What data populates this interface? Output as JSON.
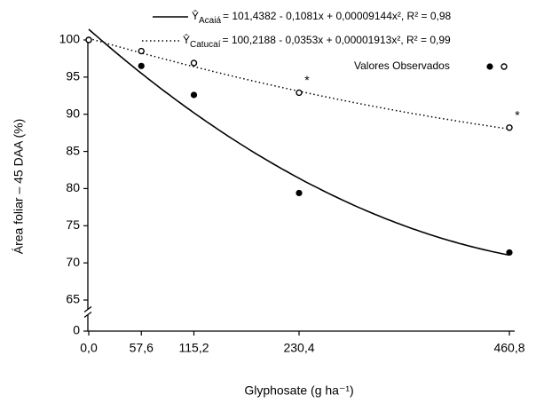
{
  "chart_data": {
    "type": "scatter",
    "xlabel": "Glyphosate (g ha⁻¹)",
    "ylabel": "Área foliar – 45 DAA (%)",
    "x": [
      0.0,
      57.6,
      115.2,
      230.4,
      460.8
    ],
    "xlim": [
      0.0,
      460.8
    ],
    "xticks": [
      {
        "value": 0.0,
        "label": "0,0"
      },
      {
        "value": 57.6,
        "label": "57,6"
      },
      {
        "value": 115.2,
        "label": "115,2"
      },
      {
        "value": 230.4,
        "label": "230,4"
      },
      {
        "value": 460.8,
        "label": "460,8"
      }
    ],
    "ylim": [
      0,
      100
    ],
    "y_break": [
      0,
      65
    ],
    "yticks": [
      0,
      65,
      70,
      75,
      80,
      85,
      90,
      95,
      100
    ],
    "fit_symbol": "Ŷ",
    "legend_note": "Valores Observados",
    "series": [
      {
        "name": "Acaiá",
        "color": "#000000",
        "marker": "filled",
        "line": "solid",
        "values": [
          100,
          96.5,
          92.6,
          79.4,
          71.4
        ],
        "fit_coefficients": [
          101.4382,
          -0.1081,
          9.144e-05
        ],
        "equation": "= 101,4382 - 0,1081x + 0,00009144x², R² = 0,98"
      },
      {
        "name": "Catucaí",
        "color": "#000000",
        "marker": "open",
        "line": "dotted",
        "values": [
          100,
          98.5,
          96.9,
          92.9,
          88.2
        ],
        "fit_coefficients": [
          100.2188,
          -0.0353,
          1.913e-05
        ],
        "equation": "= 100,2188 - 0,0353x + 0,00001913x², R² = 0,99"
      }
    ],
    "annotations": [
      {
        "text": "*",
        "series": 1,
        "x": 230.4
      },
      {
        "text": "*",
        "series": 1,
        "x": 460.8
      }
    ]
  }
}
